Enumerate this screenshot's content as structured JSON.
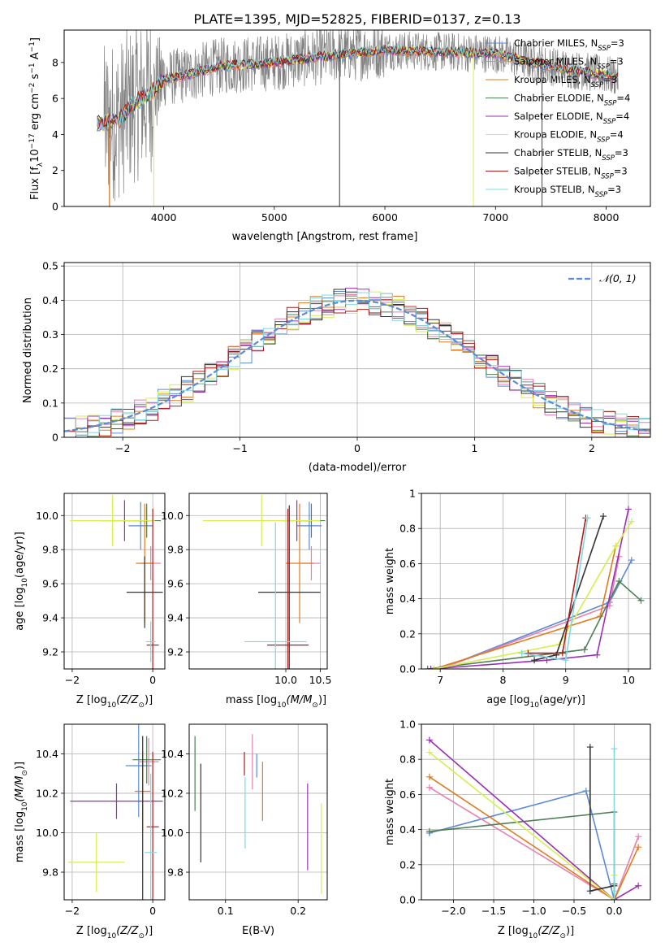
{
  "title": "PLATE=1395, MJD=52825, FIBERID=0137, z=0.13",
  "colors": {
    "chabrier_miles": "#5b8ad6",
    "salpeter_miles": "#e87fb0",
    "kroupa_miles": "#e07b1d",
    "chabrier_elodie": "#4e7f56",
    "salpeter_elodie": "#9b2fb3",
    "kroupa_elodie": "#d7ee4e",
    "chabrier_stelib": "#333333",
    "salpeter_stelib": "#b21c1c",
    "kroupa_stelib": "#7fd8e0",
    "data_gray": "#808080",
    "grid": "#b0b0b0",
    "normal": "#5b8ad6"
  },
  "chart_data": [
    {
      "id": "spectrum",
      "type": "line",
      "xlabel": "wavelength [Angstrom, rest frame]",
      "ylabel_main": "Flux [f",
      "ylabel_sub": "λ",
      "ylabel_rest": "10",
      "ylabel_exp1": "−17",
      "ylabel_mid": " erg cm",
      "ylabel_exp2": "−2",
      "ylabel_s": " s",
      "ylabel_exp3": "−1",
      "ylabel_end": " A",
      "ylabel_exp4": "−1",
      "ylabel_close": "]",
      "xlim": [
        3100,
        8400
      ],
      "ylim": [
        0,
        9.8
      ],
      "xticks": [
        4000,
        5000,
        6000,
        7000,
        8000
      ],
      "yticks": [
        0,
        2,
        4,
        6,
        8
      ],
      "legend_position": "right",
      "legend": [
        {
          "key": "chabrier_miles",
          "label": "Chabrier MILES, N",
          "sub": "SSP",
          "eq": "=3"
        },
        {
          "key": "salpeter_miles",
          "label": "Salpeter MILES, N",
          "sub": "SSP",
          "eq": "=3"
        },
        {
          "key": "kroupa_miles",
          "label": "Kroupa MILES, N",
          "sub": "SSP",
          "eq": "=3"
        },
        {
          "key": "chabrier_elodie",
          "label": "Chabrier ELODIE, N",
          "sub": "SSP",
          "eq": "=4"
        },
        {
          "key": "salpeter_elodie",
          "label": "Salpeter ELODIE, N",
          "sub": "SSP",
          "eq": "=4"
        },
        {
          "key": "kroupa_elodie",
          "label": "Kroupa ELODIE, N",
          "sub": "SSP",
          "eq": "=4"
        },
        {
          "key": "chabrier_stelib",
          "label": "Chabrier STELIB, N",
          "sub": "SSP",
          "eq": "=3"
        },
        {
          "key": "salpeter_stelib",
          "label": "Salpeter STELIB, N",
          "sub": "SSP",
          "eq": "=3"
        },
        {
          "key": "kroupa_stelib",
          "label": "Kroupa STELIB, N",
          "sub": "SSP",
          "eq": "=3"
        }
      ],
      "data_range": [
        3400,
        8110
      ],
      "continuum": [
        [
          3400,
          4.6
        ],
        [
          3600,
          4.8
        ],
        [
          3700,
          5.6
        ],
        [
          3900,
          6.4
        ],
        [
          4000,
          7.1
        ],
        [
          4200,
          7.3
        ],
        [
          4500,
          7.8
        ],
        [
          5000,
          8.0
        ],
        [
          5500,
          8.4
        ],
        [
          6000,
          8.7
        ],
        [
          6500,
          8.6
        ],
        [
          7000,
          8.5
        ],
        [
          7500,
          7.8
        ],
        [
          8100,
          7.2
        ]
      ],
      "drops": [
        {
          "key": "salpeter_stelib",
          "x": 3510
        },
        {
          "key": "kroupa_miles",
          "x": 3510
        },
        {
          "key": "kroupa_elodie",
          "x": 3910
        },
        {
          "key": "kroupa_elodie",
          "x": 6800
        },
        {
          "key": "chabrier_stelib",
          "x": 5590
        },
        {
          "key": "salpeter_stelib",
          "x": 7420
        }
      ]
    },
    {
      "id": "residuals",
      "type": "step-histogram",
      "xlabel": "(data-model)/error",
      "ylabel": "Normed distribution",
      "xlim": [
        -2.5,
        2.5
      ],
      "ylim": [
        0,
        0.51
      ],
      "xticks": [
        -2,
        -1,
        0,
        1,
        2
      ],
      "yticks": [
        0.0,
        0.1,
        0.2,
        0.3,
        0.4,
        0.5
      ],
      "legend_label": "𝒩(0, 1)",
      "legend_position": "top-right",
      "bin_width": 0.1
    },
    {
      "id": "age_vs_Z",
      "type": "errorbar",
      "xlabel": "Z [log",
      "xlabel_sub": "10",
      "xlabel_rest": "(Z/Z",
      "xlabel_sun": "⊙",
      "xlabel_close": ")]",
      "ylabel": "age  [log",
      "ylabel_sub": "10",
      "ylabel_rest": "(age/yr)]",
      "xlim": [
        -2.2,
        0.3
      ],
      "ylim": [
        9.1,
        10.13
      ],
      "xticks": [
        -2,
        0
      ],
      "yticks": [
        9.2,
        9.4,
        9.6,
        9.8,
        10.0
      ],
      "points": [
        {
          "key": "chabrier_miles",
          "x": -0.3,
          "y": 9.94,
          "xerr": 0.3,
          "yerr": 0.14
        },
        {
          "key": "salpeter_miles",
          "x": -0.05,
          "y": 9.72,
          "xerr": 0.25,
          "yerr": 0.1
        },
        {
          "key": "kroupa_miles",
          "x": -0.2,
          "y": 9.72,
          "xerr": 0.22,
          "yerr": 0.35
        },
        {
          "key": "chabrier_elodie",
          "x": -0.15,
          "y": 9.97,
          "xerr": 0.35,
          "yerr": 0.1
        },
        {
          "key": "salpeter_elodie",
          "x": -0.7,
          "y": 9.97,
          "xerr": 0.6,
          "yerr": 0.12
        },
        {
          "key": "kroupa_elodie",
          "x": -1.0,
          "y": 9.97,
          "xerr": 1.05,
          "yerr": 0.15
        },
        {
          "key": "chabrier_stelib",
          "x": -0.2,
          "y": 9.55,
          "xerr": 0.45,
          "yerr": 0.21
        },
        {
          "key": "salpeter_stelib",
          "x": 0.0,
          "y": 9.24,
          "xerr": 0.15,
          "yerr": 0.8
        },
        {
          "key": "kroupa_stelib",
          "x": -0.05,
          "y": 9.26,
          "xerr": 0.12,
          "yerr": 0.12
        }
      ]
    },
    {
      "id": "age_vs_mass",
      "type": "errorbar",
      "xlabel": "mass [log",
      "xlabel_sub": "10",
      "xlabel_rest": "(M/M",
      "xlabel_sun": "⊙",
      "xlabel_close": ")]",
      "xlim": [
        8.6,
        10.6
      ],
      "ylim": [
        9.1,
        10.13
      ],
      "xticks": [
        10.0,
        10.5
      ],
      "yticks": [
        9.2,
        9.4,
        9.6,
        9.8,
        10.0
      ],
      "points": [
        {
          "key": "chabrier_miles",
          "x": 10.34,
          "y": 9.94,
          "xerr": 0.18,
          "yerr": 0.14
        },
        {
          "key": "salpeter_miles",
          "x": 10.37,
          "y": 9.72,
          "xerr": 0.13,
          "yerr": 0.1
        },
        {
          "key": "kroupa_miles",
          "x": 10.2,
          "y": 9.72,
          "xerr": 0.2,
          "yerr": 0.35
        },
        {
          "key": "chabrier_elodie",
          "x": 10.37,
          "y": 9.97,
          "xerr": 0.2,
          "yerr": 0.1
        },
        {
          "key": "salpeter_elodie",
          "x": 10.16,
          "y": 9.97,
          "xerr": 0.2,
          "yerr": 0.12
        },
        {
          "key": "kroupa_elodie",
          "x": 9.65,
          "y": 9.97,
          "xerr": 0.85,
          "yerr": 0.15
        },
        {
          "key": "chabrier_stelib",
          "x": 10.05,
          "y": 9.55,
          "xerr": 0.45,
          "yerr": 0.51
        },
        {
          "key": "salpeter_stelib",
          "x": 10.03,
          "y": 9.24,
          "xerr": 0.3,
          "yerr": 0.8
        },
        {
          "key": "kroupa_stelib",
          "x": 9.85,
          "y": 9.26,
          "xerr": 0.45,
          "yerr": 0.7
        }
      ]
    },
    {
      "id": "weight_vs_age",
      "type": "line",
      "xlabel": "age  [log",
      "xlabel_sub": "10",
      "xlabel_rest": "(age/yr)]",
      "ylabel": "mass weight",
      "xlim": [
        6.7,
        10.35
      ],
      "ylim": [
        0,
        1.0
      ],
      "xticks": [
        7,
        8,
        9,
        10
      ],
      "yticks": [
        0.0,
        0.2,
        0.4,
        0.6,
        0.8,
        1.0
      ],
      "series": [
        {
          "key": "chabrier_miles",
          "points": [
            [
              7.0,
              0.0
            ],
            [
              9.7,
              0.38
            ],
            [
              10.05,
              0.62
            ]
          ]
        },
        {
          "key": "salpeter_miles",
          "points": [
            [
              7.0,
              0.0
            ],
            [
              9.7,
              0.36
            ],
            [
              9.85,
              0.64
            ]
          ]
        },
        {
          "key": "kroupa_miles",
          "points": [
            [
              6.9,
              0.0
            ],
            [
              9.55,
              0.3
            ],
            [
              9.8,
              0.7
            ]
          ]
        },
        {
          "key": "chabrier_elodie",
          "points": [
            [
              6.8,
              0.0
            ],
            [
              9.3,
              0.11
            ],
            [
              9.85,
              0.5
            ],
            [
              10.2,
              0.39
            ]
          ]
        },
        {
          "key": "salpeter_elodie",
          "points": [
            [
              6.85,
              0.0
            ],
            [
              8.7,
              0.05
            ],
            [
              9.5,
              0.08
            ],
            [
              10.0,
              0.91
            ]
          ]
        },
        {
          "key": "kroupa_elodie",
          "points": [
            [
              6.9,
              0.0
            ],
            [
              8.9,
              0.14
            ],
            [
              9.8,
              0.7
            ],
            [
              10.05,
              0.84
            ]
          ]
        },
        {
          "key": "chabrier_stelib",
          "points": [
            [
              8.5,
              0.05
            ],
            [
              8.85,
              0.08
            ],
            [
              9.6,
              0.87
            ]
          ]
        },
        {
          "key": "salpeter_stelib",
          "points": [
            [
              8.4,
              0.09
            ],
            [
              8.95,
              0.09
            ],
            [
              9.32,
              0.86
            ]
          ]
        },
        {
          "key": "kroupa_stelib",
          "points": [
            [
              8.3,
              0.09
            ],
            [
              9.0,
              0.05
            ],
            [
              9.35,
              0.86
            ]
          ]
        }
      ]
    },
    {
      "id": "mass_vs_Z",
      "type": "errorbar",
      "xlabel": "Z [log",
      "xlabel_sub": "10",
      "xlabel_rest": "(Z/Z",
      "xlabel_sun": "⊙",
      "xlabel_close": ")]",
      "ylabel": "mass [log",
      "ylabel_sub": "10",
      "ylabel_rest": "(M/M",
      "ylabel_sun": "⊙",
      "ylabel_close": ")]",
      "xlim": [
        -2.2,
        0.3
      ],
      "ylim": [
        9.66,
        10.55
      ],
      "xticks": [
        -2,
        0
      ],
      "yticks": [
        9.8,
        10.0,
        10.2,
        10.4
      ],
      "points": [
        {
          "key": "chabrier_miles",
          "x": -0.35,
          "y": 10.34,
          "xerr": 0.32,
          "yerr": 0.26
        },
        {
          "key": "salpeter_miles",
          "x": -0.1,
          "y": 10.36,
          "xerr": 0.25,
          "yerr": 0.12
        },
        {
          "key": "kroupa_miles",
          "x": -0.25,
          "y": 10.21,
          "xerr": 0.2,
          "yerr": 0.2
        },
        {
          "key": "chabrier_elodie",
          "x": -0.15,
          "y": 10.37,
          "xerr": 0.35,
          "yerr": 0.12
        },
        {
          "key": "salpeter_elodie",
          "x": -0.9,
          "y": 10.16,
          "xerr": 1.15,
          "yerr": 0.09
        },
        {
          "key": "kroupa_elodie",
          "x": -1.4,
          "y": 9.85,
          "xerr": 0.7,
          "yerr": 0.15
        },
        {
          "key": "chabrier_stelib",
          "x": -0.25,
          "y": 10.03,
          "xerr": 0.0,
          "yerr": 0.46
        },
        {
          "key": "salpeter_stelib",
          "x": 0.0,
          "y": 10.03,
          "xerr": 0.15,
          "yerr": 0.38
        },
        {
          "key": "kroupa_stelib",
          "x": -0.05,
          "y": 9.9,
          "xerr": 0.15,
          "yerr": 0.4
        }
      ]
    },
    {
      "id": "mass_vs_ebv",
      "type": "errorbar",
      "xlabel": "E(B-V)",
      "xlim": [
        0.05,
        0.24
      ],
      "ylim": [
        9.66,
        10.55
      ],
      "xticks": [
        0.1,
        0.2
      ],
      "yticks": [
        9.8,
        10.0,
        10.2,
        10.4
      ],
      "points": [
        {
          "key": "chabrier_miles",
          "x": 0.143,
          "y": 10.34,
          "xerr": 0.0,
          "yerr": 0.06
        },
        {
          "key": "salpeter_miles",
          "x": 0.137,
          "y": 10.36,
          "xerr": 0.0,
          "yerr": 0.14
        },
        {
          "key": "kroupa_miles",
          "x": 0.151,
          "y": 10.21,
          "xerr": 0.0,
          "yerr": 0.15
        },
        {
          "key": "chabrier_elodie",
          "x": 0.058,
          "y": 10.3,
          "xerr": 0.0,
          "yerr": 0.19
        },
        {
          "key": "salpeter_elodie",
          "x": 0.213,
          "y": 10.03,
          "xerr": 0.0,
          "yerr": 0.22
        },
        {
          "key": "kroupa_elodie",
          "x": 0.232,
          "y": 9.92,
          "xerr": 0.0,
          "yerr": 0.23
        },
        {
          "key": "chabrier_stelib",
          "x": 0.066,
          "y": 10.1,
          "xerr": 0.0,
          "yerr": 0.25
        },
        {
          "key": "salpeter_stelib",
          "x": 0.126,
          "y": 10.35,
          "xerr": 0.0,
          "yerr": 0.06
        },
        {
          "key": "kroupa_stelib",
          "x": 0.127,
          "y": 10.1,
          "xerr": 0.0,
          "yerr": 0.18
        }
      ]
    },
    {
      "id": "weight_vs_Z",
      "type": "line",
      "xlabel": "Z [log",
      "xlabel_sub": "10",
      "xlabel_rest": "(Z/Z",
      "xlabel_sun": "⊙",
      "xlabel_close": ")]",
      "ylabel": "mass weight",
      "xlim": [
        -2.4,
        0.45
      ],
      "ylim": [
        0,
        1.0
      ],
      "xticks": [
        -2.0,
        -1.5,
        -1.0,
        -0.5,
        0.0
      ],
      "yticks": [
        0.0,
        0.2,
        0.4,
        0.6,
        0.8,
        1.0
      ],
      "series": [
        {
          "key": "chabrier_miles",
          "points": [
            [
              -2.3,
              0.38
            ],
            [
              -0.35,
              0.62
            ],
            [
              0.0,
              0.0
            ]
          ]
        },
        {
          "key": "salpeter_miles",
          "points": [
            [
              -2.3,
              0.64
            ],
            [
              0.0,
              0.0
            ],
            [
              0.3,
              0.36
            ]
          ]
        },
        {
          "key": "kroupa_miles",
          "points": [
            [
              -2.3,
              0.7
            ],
            [
              0.0,
              0.0
            ],
            [
              0.3,
              0.3
            ]
          ]
        },
        {
          "key": "chabrier_elodie",
          "points": [
            [
              -2.3,
              0.39
            ],
            [
              0.0,
              0.5
            ],
            [
              0.0,
              0.0
            ]
          ]
        },
        {
          "key": "salpeter_elodie",
          "points": [
            [
              -2.3,
              0.91
            ],
            [
              0.0,
              0.0
            ],
            [
              0.3,
              0.08
            ]
          ]
        },
        {
          "key": "kroupa_elodie",
          "points": [
            [
              -2.3,
              0.84
            ],
            [
              0.0,
              0.0
            ],
            [
              0.0,
              0.14
            ]
          ]
        },
        {
          "key": "chabrier_stelib",
          "points": [
            [
              -0.3,
              0.87
            ],
            [
              -0.3,
              0.05
            ],
            [
              0.0,
              0.08
            ]
          ]
        },
        {
          "key": "salpeter_stelib",
          "points": [
            [
              0.0,
              0.09
            ],
            [
              0.0,
              0.0
            ]
          ]
        },
        {
          "key": "kroupa_stelib",
          "points": [
            [
              0.0,
              0.86
            ],
            [
              0.0,
              0.05
            ],
            [
              0.0,
              0.0
            ]
          ]
        }
      ]
    }
  ]
}
